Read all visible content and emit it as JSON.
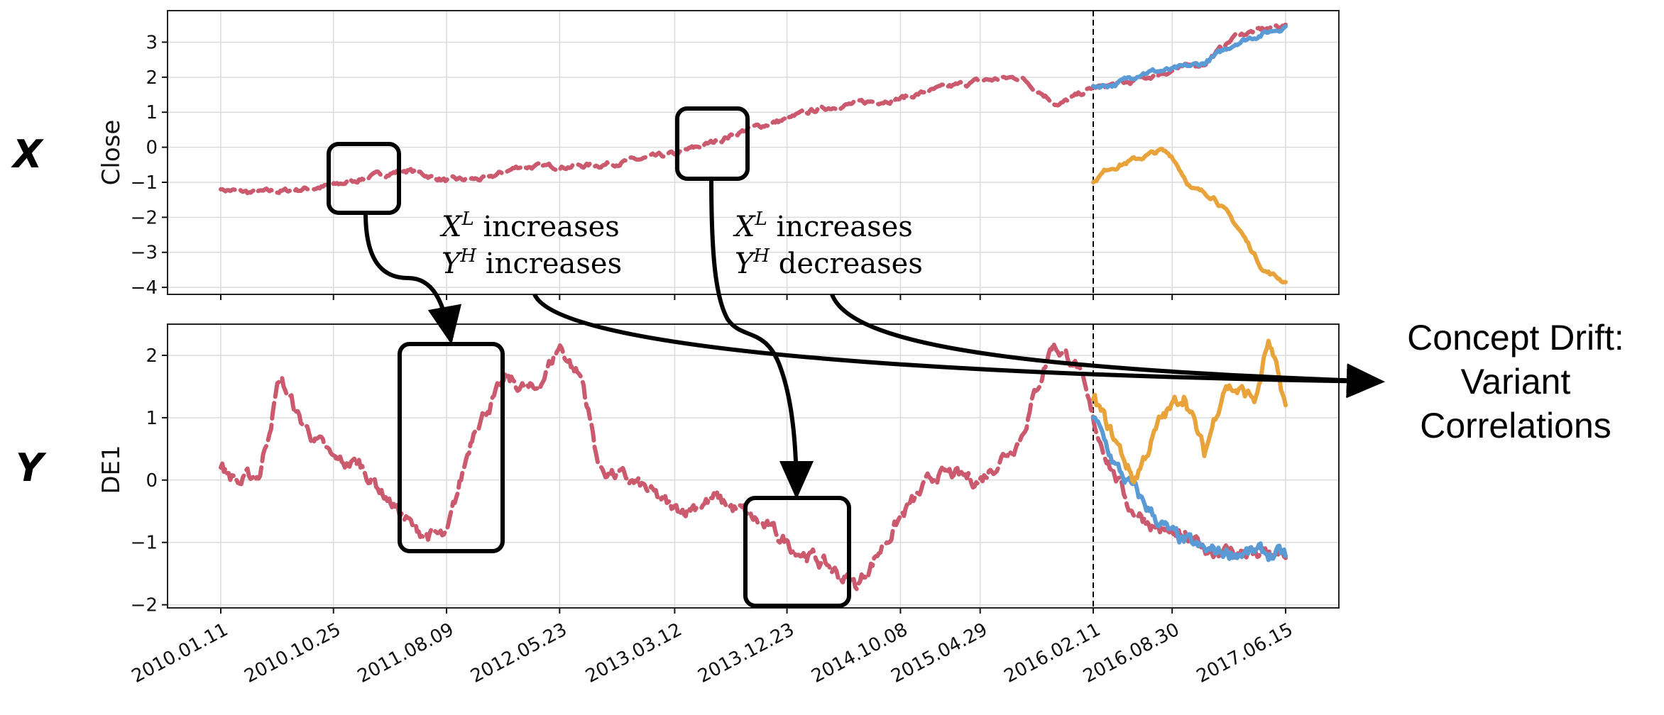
{
  "chart_data": [
    {
      "type": "line",
      "ylabel": "Close",
      "variable_label": "X",
      "ylim": [
        -4.2,
        3.9
      ],
      "yticks": [
        3,
        2,
        1,
        0,
        -1,
        -2,
        -3,
        -4
      ],
      "ytick_labels": [
        "3",
        "2",
        "1",
        "0",
        "−1",
        "−2",
        "−3",
        "−4"
      ],
      "grid": true,
      "forecast_start": "2016.02.11",
      "series": [
        {
          "color": "#cc5a6e",
          "style": "dashed",
          "x": [
            "2010.01.11",
            "2010.04.01",
            "2010.06.20",
            "2010.10.25",
            "2011.01.20",
            "2011.05.01",
            "2011.08.09",
            "2011.11.20",
            "2012.02.10",
            "2012.05.23",
            "2012.09.01",
            "2012.12.15",
            "2013.03.12",
            "2013.06.20",
            "2013.09.10",
            "2013.12.23",
            "2014.03.15",
            "2014.06.20",
            "2014.10.08",
            "2015.01.10",
            "2015.04.29",
            "2015.08.10",
            "2015.11.15",
            "2016.02.11",
            "2016.05.15",
            "2016.08.30",
            "2016.11.20",
            "2017.02.10",
            "2017.06.15"
          ],
          "y": [
            -1.2,
            -1.3,
            -1.25,
            -1.1,
            -0.85,
            -0.65,
            -0.95,
            -0.9,
            -0.55,
            -0.55,
            -0.5,
            -0.35,
            -0.2,
            0.15,
            0.5,
            0.8,
            1.1,
            1.25,
            1.4,
            1.65,
            1.9,
            2.0,
            1.2,
            1.7,
            1.85,
            2.2,
            2.4,
            3.2,
            3.5
          ]
        },
        {
          "color": "#5b9bd5",
          "style": "solid",
          "x": [
            "2016.02.11",
            "2016.04.10",
            "2016.06.15",
            "2016.08.30",
            "2016.11.20",
            "2017.02.10",
            "2017.06.15"
          ],
          "y": [
            1.75,
            1.8,
            2.15,
            2.2,
            2.4,
            3.0,
            3.45
          ]
        },
        {
          "color": "#e8a33b",
          "style": "solid",
          "x": [
            "2016.02.11",
            "2016.03.20",
            "2016.05.15",
            "2016.08.01",
            "2016.08.30",
            "2016.10.20",
            "2016.12.15",
            "2017.02.20",
            "2017.04.20",
            "2017.06.15"
          ],
          "y": [
            -1.0,
            -0.6,
            -0.4,
            -0.1,
            -0.25,
            -1.2,
            -1.4,
            -2.4,
            -3.5,
            -3.85
          ]
        }
      ]
    },
    {
      "type": "line",
      "ylabel": "DE1",
      "variable_label": "Y",
      "ylim": [
        -2.05,
        2.5
      ],
      "yticks": [
        2,
        1,
        0,
        -1,
        -2
      ],
      "ytick_labels": [
        "2",
        "1",
        "0",
        "−1",
        "−2"
      ],
      "grid": true,
      "forecast_start": "2016.02.11",
      "categories": [
        "2010.01.11",
        "2010.10.25",
        "2011.08.09",
        "2012.05.23",
        "2013.03.12",
        "2013.12.23",
        "2014.10.08",
        "2015.04.29",
        "2016.02.11",
        "2016.08.30",
        "2017.06.15"
      ],
      "series": [
        {
          "color": "#cc5a6e",
          "style": "dashed",
          "x": [
            "2010.01.11",
            "2010.03.01",
            "2010.04.20",
            "2010.06.10",
            "2010.08.01",
            "2010.10.25",
            "2011.01.01",
            "2011.03.15",
            "2011.05.20",
            "2011.08.09",
            "2011.10.20",
            "2012.01.10",
            "2012.03.20",
            "2012.05.23",
            "2012.07.20",
            "2012.09.01",
            "2012.12.15",
            "2013.03.12",
            "2013.06.20",
            "2013.09.10",
            "2013.12.23",
            "2014.03.15",
            "2014.06.20",
            "2014.10.08",
            "2015.01.10",
            "2015.04.29",
            "2015.08.10",
            "2015.10.30",
            "2016.01.01",
            "2016.02.11",
            "2016.05.15",
            "2016.08.30",
            "2016.11.20",
            "2017.02.10",
            "2017.06.15"
          ],
          "y": [
            0.2,
            -0.05,
            0.1,
            1.65,
            0.95,
            0.3,
            0.25,
            -0.3,
            -0.8,
            -0.95,
            0.9,
            1.6,
            1.4,
            2.15,
            1.6,
            0.2,
            -0.1,
            -0.5,
            -0.3,
            -0.55,
            -1.0,
            -1.3,
            -1.7,
            -0.6,
            0.1,
            0.0,
            0.7,
            2.2,
            1.85,
            0.9,
            -0.45,
            -0.9,
            -1.1,
            -1.15,
            -1.25
          ]
        },
        {
          "color": "#5b9bd5",
          "style": "solid",
          "x": [
            "2016.02.11",
            "2016.04.10",
            "2016.06.15",
            "2016.08.30",
            "2016.11.20",
            "2017.02.10",
            "2017.06.15"
          ],
          "y": [
            1.0,
            0.2,
            -0.35,
            -0.9,
            -1.15,
            -1.15,
            -1.22
          ]
        },
        {
          "color": "#e8a33b",
          "style": "solid",
          "x": [
            "2016.02.11",
            "2016.04.10",
            "2016.05.25",
            "2016.08.01",
            "2016.10.01",
            "2016.11.20",
            "2017.01.10",
            "2017.04.01",
            "2017.05.01",
            "2017.06.15"
          ],
          "y": [
            1.3,
            0.6,
            0.0,
            0.95,
            1.4,
            0.4,
            1.55,
            1.3,
            2.2,
            1.2
          ]
        }
      ]
    }
  ],
  "annotations": {
    "text1": {
      "line1_var": "X",
      "line1_sup": "L",
      "line1_text": " increases",
      "line2_var": "Y",
      "line2_sup": "H",
      "line2_text": " increases"
    },
    "text2": {
      "line1_var": "X",
      "line1_sup": "L",
      "line1_text": " increases",
      "line2_var": "Y",
      "line2_sup": "H",
      "line2_text": " decreases"
    },
    "drift": [
      "Concept Drift:",
      "Variant",
      "Correlations"
    ]
  },
  "colors": {
    "history": "#cc5a6e",
    "forecast_blue": "#5b9bd5",
    "forecast_orange": "#e8a33b"
  }
}
